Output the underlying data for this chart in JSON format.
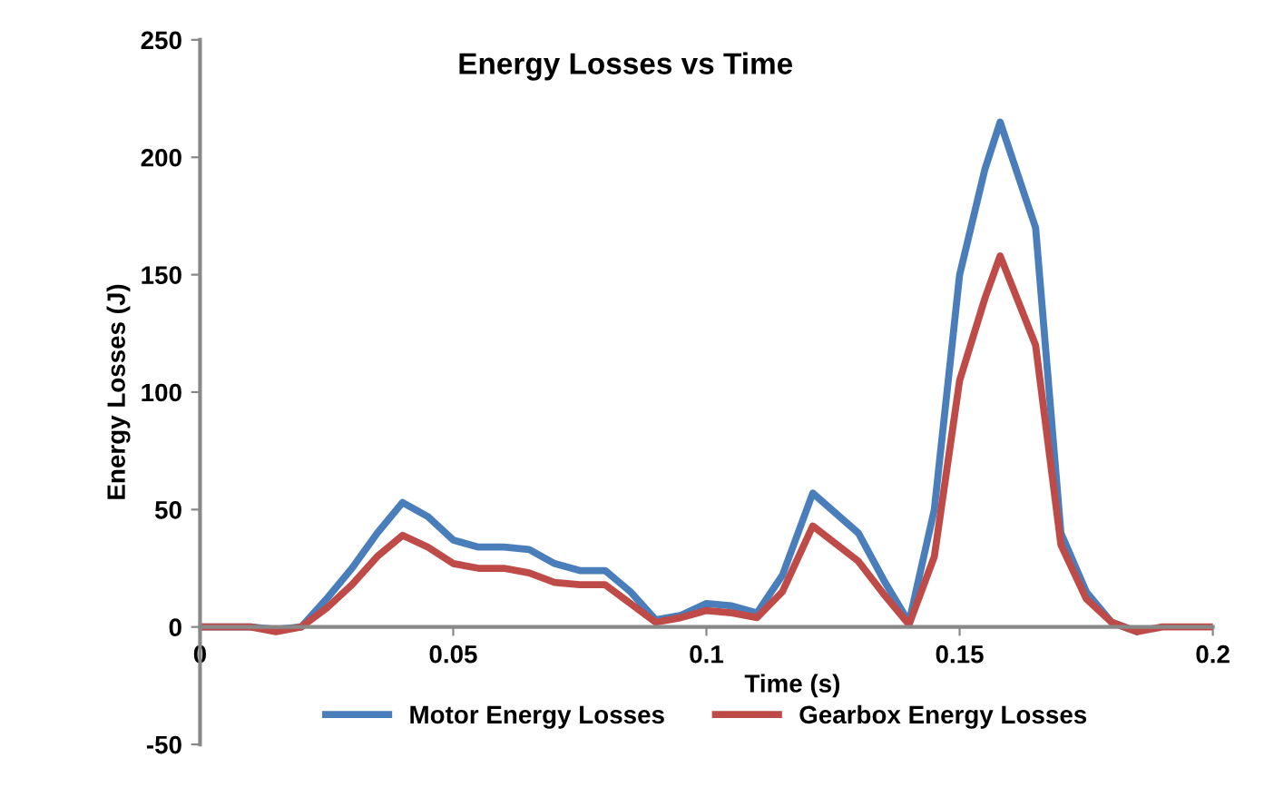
{
  "chart_data": {
    "type": "line",
    "title": "Energy Losses vs Time",
    "xlabel": "Time (s)",
    "ylabel": "Energy Losses (J)",
    "xlim": [
      0,
      0.2
    ],
    "xticks": [
      0,
      0.05,
      0.1,
      0.15,
      0.2
    ],
    "ylim": [
      -50,
      250
    ],
    "yticks": [
      -50,
      0,
      50,
      100,
      150,
      200,
      250
    ],
    "grid": false,
    "legend": "bottom",
    "marker": "none",
    "line_style": "solid",
    "series": [
      {
        "name": "Motor Energy Losses",
        "color": "#4a7ebb",
        "x": [
          0,
          0.01,
          0.015,
          0.02,
          0.025,
          0.03,
          0.035,
          0.04,
          0.045,
          0.05,
          0.055,
          0.06,
          0.065,
          0.07,
          0.075,
          0.08,
          0.085,
          0.09,
          0.095,
          0.1,
          0.105,
          0.11,
          0.115,
          0.121,
          0.13,
          0.135,
          0.14,
          0.145,
          0.15,
          0.155,
          0.158,
          0.165,
          0.17,
          0.175,
          0.18,
          0.185
        ],
        "values": [
          0,
          0,
          -1,
          0,
          12,
          25,
          40,
          53,
          47,
          37,
          34,
          34,
          33,
          27,
          24,
          24,
          15,
          3,
          5,
          10,
          9,
          6,
          22,
          57,
          40,
          20,
          2,
          50,
          150,
          195,
          215,
          170,
          40,
          15,
          2,
          -2
        ]
      },
      {
        "name": "Gearbox Energy Losses",
        "color": "#be4b48",
        "x": [
          0,
          0.01,
          0.015,
          0.02,
          0.025,
          0.03,
          0.035,
          0.04,
          0.045,
          0.05,
          0.055,
          0.06,
          0.065,
          0.07,
          0.075,
          0.08,
          0.085,
          0.09,
          0.095,
          0.1,
          0.105,
          0.11,
          0.115,
          0.121,
          0.13,
          0.135,
          0.14,
          0.145,
          0.15,
          0.155,
          0.158,
          0.165,
          0.17,
          0.175,
          0.18,
          0.185,
          0.19,
          0.2
        ],
        "values": [
          0,
          0,
          -2,
          0,
          8,
          18,
          30,
          39,
          34,
          27,
          25,
          25,
          23,
          19,
          18,
          18,
          10,
          2,
          4,
          7,
          6,
          4,
          15,
          43,
          28,
          14,
          1,
          30,
          105,
          140,
          158,
          120,
          35,
          12,
          2,
          -2,
          0,
          0
        ]
      }
    ]
  }
}
